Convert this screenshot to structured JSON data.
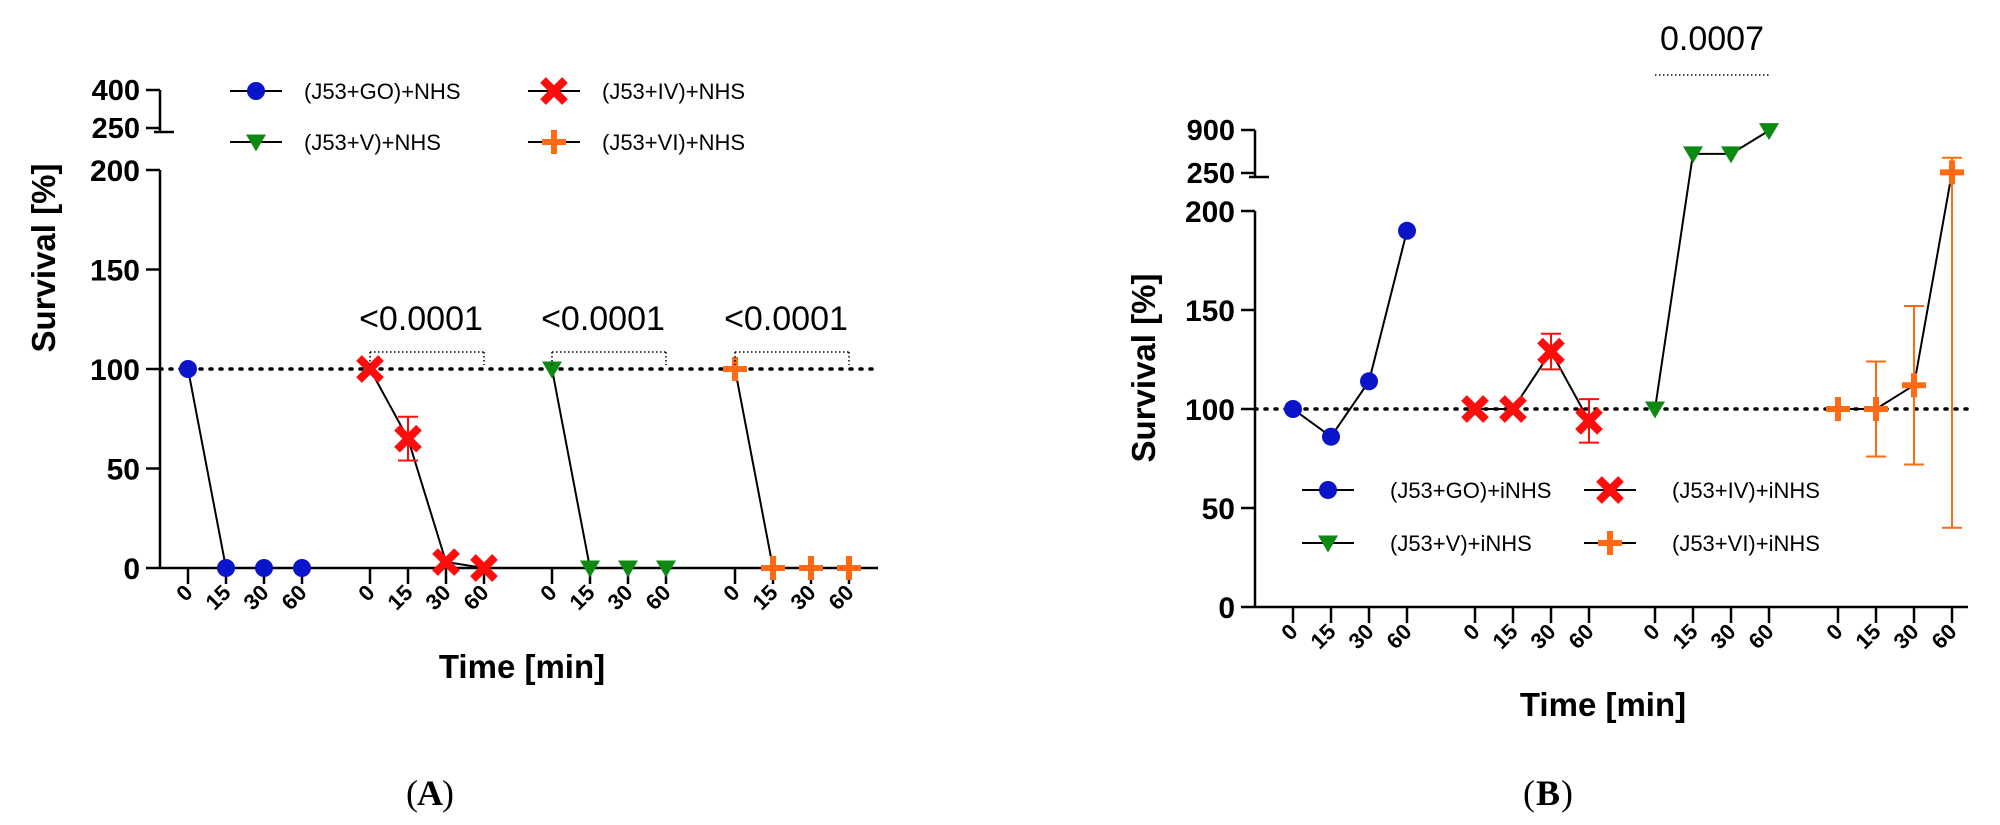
{
  "figure": {
    "label_a": "A",
    "label_b": "B"
  },
  "chart_data": [
    {
      "panel": "A",
      "type": "line",
      "xlabel": "Time [min]",
      "ylabel": "Survival [%]",
      "ylim_lower": [
        0,
        200
      ],
      "ylim_upper": [
        250,
        400
      ],
      "yticks_lower": [
        0,
        50,
        100,
        150,
        200
      ],
      "yticks_upper": [
        250,
        400
      ],
      "reference_line": 100,
      "time_points": [
        "0",
        "15",
        "30",
        "60"
      ],
      "series": [
        {
          "name": "(J53+GO)+NHS",
          "color": "#0a14c8",
          "marker": "circle",
          "values": [
            100,
            0,
            0,
            0
          ],
          "errors": [
            0,
            0,
            0,
            0
          ]
        },
        {
          "name": "(J53+IV)+NHS",
          "color": "#ff0d0d",
          "marker": "x",
          "values": [
            100,
            65,
            3,
            0
          ],
          "errors": [
            0,
            11,
            0,
            0
          ]
        },
        {
          "name": "(J53+V)+NHS",
          "color": "#0e8a12",
          "marker": "triangle-down",
          "values": [
            100,
            0,
            0,
            0
          ],
          "errors": [
            0,
            0,
            0,
            0
          ]
        },
        {
          "name": "(J53+VI)+NHS",
          "color": "#ff6a13",
          "marker": "plus",
          "values": [
            100,
            0,
            0,
            0
          ],
          "errors": [
            0,
            0,
            0,
            0
          ]
        }
      ],
      "annotations": [
        {
          "group": 1,
          "text": "<0.0001"
        },
        {
          "group": 2,
          "text": "<0.0001"
        },
        {
          "group": 3,
          "text": "<0.0001"
        }
      ]
    },
    {
      "panel": "B",
      "type": "line",
      "xlabel": "Time [min]",
      "ylabel": "Survival [%]",
      "ylim_lower": [
        0,
        200
      ],
      "ylim_upper": [
        250,
        900
      ],
      "yticks_lower": [
        0,
        50,
        100,
        150,
        200
      ],
      "yticks_upper": [
        250,
        900
      ],
      "reference_line": 100,
      "time_points": [
        "0",
        "15",
        "30",
        "60"
      ],
      "series": [
        {
          "name": "(J53+GO)+iNHS",
          "color": "#0a14c8",
          "marker": "circle",
          "values": [
            100,
            86,
            114,
            190
          ],
          "errors": [
            0,
            0,
            0,
            0
          ]
        },
        {
          "name": "(J53+IV)+iNHS",
          "color": "#ff0d0d",
          "marker": "x",
          "values": [
            100,
            100,
            129,
            94
          ],
          "errors": [
            0,
            0,
            9,
            11
          ]
        },
        {
          "name": "(J53+V)+iNHS",
          "color": "#0e8a12",
          "marker": "triangle-down",
          "values": [
            100,
            540,
            540,
            890
          ],
          "errors": [
            0,
            0,
            0,
            0
          ]
        },
        {
          "name": "(J53+VI)+iNHS",
          "color": "#ff6a13",
          "marker": "plus",
          "values": [
            100,
            100,
            112,
            260
          ],
          "errors": [
            0,
            24,
            40,
            220
          ]
        }
      ],
      "annotations": [
        {
          "group": 2,
          "text": "0.0007"
        }
      ]
    }
  ]
}
